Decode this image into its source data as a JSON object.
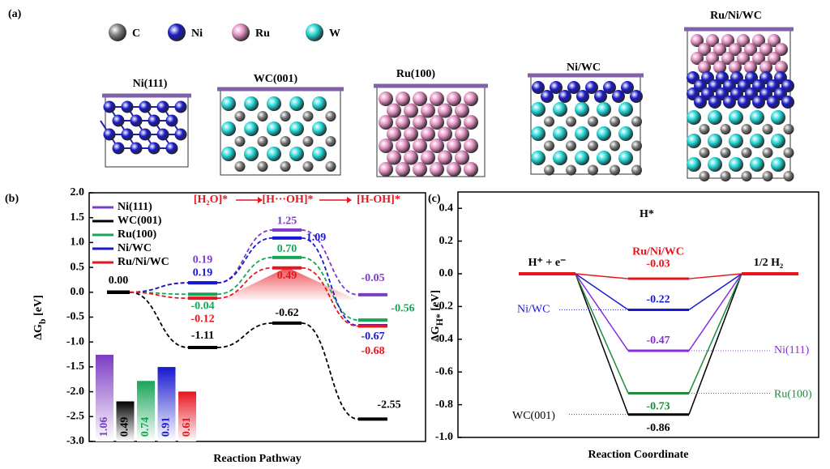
{
  "panel_labels": [
    "(a)",
    "(b)",
    "(c)"
  ],
  "structures": {
    "legend": [
      {
        "name": "C",
        "color": "#7f7f7f"
      },
      {
        "name": "Ni",
        "color": "#1c1cc8"
      },
      {
        "name": "Ru",
        "color": "#e28fc0"
      },
      {
        "name": "W",
        "color": "#22d4d4"
      }
    ],
    "labels": [
      "Ni(111)",
      "WC(001)",
      "Ru(100)",
      "Ni/WC",
      "Ru/Ni/WC"
    ]
  },
  "chart_data": [
    {
      "type": "line",
      "categories": [
        null,
        "[H₂O]*",
        "[H···OH]*",
        "[H-OH]*"
      ],
      "ylim": [
        -3,
        2
      ],
      "yticks": [
        {
          "value": 2,
          "label": "2.0"
        },
        {
          "value": 1.5,
          "label": "1.5"
        },
        {
          "value": 1,
          "label": "1.0"
        },
        {
          "value": 0.5,
          "label": "0.5"
        },
        {
          "value": 0,
          "label": "0.0"
        },
        {
          "value": -0.5,
          "label": "-0.5"
        },
        {
          "value": -1,
          "label": "-1.0"
        },
        {
          "value": -1.5,
          "label": "-1.5"
        },
        {
          "value": -2,
          "label": "-2.0"
        },
        {
          "value": -2.5,
          "label": "-2.5"
        },
        {
          "value": -3,
          "label": "-3.0"
        }
      ],
      "ylabel": [
        "ΔG",
        "b",
        " [eV]"
      ],
      "xlabel": "Reaction Pathway",
      "legend": "upper left",
      "series": [
        {
          "name": "Ni(111)",
          "color": "#7d3cc4",
          "values": [
            0,
            0.19,
            1.25,
            -0.05
          ],
          "value_labels": [
            null,
            "0.19",
            "1.25",
            "-0.05"
          ]
        },
        {
          "name": "WC(001)",
          "color": "#000000",
          "values": [
            0,
            -1.11,
            -0.62,
            -2.55
          ],
          "value_labels": [
            "0.00",
            "-1.11",
            "-0.62",
            "-2.55"
          ]
        },
        {
          "name": "Ru(100)",
          "color": "#18a558",
          "values": [
            0,
            -0.04,
            0.7,
            -0.56
          ],
          "value_labels": [
            null,
            "-0.04",
            "0.70",
            "-0.56"
          ]
        },
        {
          "name": "Ni/WC",
          "color": "#1818d0",
          "values": [
            0,
            0.19,
            1.09,
            -0.67
          ],
          "value_labels": [
            null,
            "0.19",
            "1.09",
            "-0.67"
          ]
        },
        {
          "name": "Ru/Ni/WC",
          "color": "#e8141e",
          "values": [
            0,
            -0.12,
            0.49,
            -0.68
          ],
          "value_labels": [
            null,
            "-0.12",
            "0.49",
            "-0.68"
          ]
        }
      ],
      "inset": {
        "type": "bar",
        "values": [
          1.06,
          0.49,
          0.74,
          0.91,
          0.61
        ]
      }
    },
    {
      "type": "line",
      "title": "H*",
      "categories": [
        "H⁺ + e⁻",
        "H*",
        "1/2 H₂"
      ],
      "ylim": [
        -1,
        0.5
      ],
      "yticks": [
        {
          "value": 0.4,
          "label": "0.4"
        },
        {
          "value": 0.2,
          "label": "0.2"
        },
        {
          "value": 0,
          "label": "0.0"
        },
        {
          "value": -0.2,
          "label": "-0.2"
        },
        {
          "value": -0.4,
          "label": "-0.4"
        },
        {
          "value": -0.6,
          "label": "-0.6"
        },
        {
          "value": -0.8,
          "label": "-0.8"
        },
        {
          "value": -1,
          "label": "-1.0"
        }
      ],
      "ylabel": [
        "ΔG",
        "H*",
        " [eV]"
      ],
      "xlabel": "Reaction Coordinate",
      "series": [
        {
          "name": "Ru/Ni/WC",
          "color": "#e8141e",
          "values": [
            0,
            -0.03,
            0
          ],
          "value_labels": [
            null,
            "-0.03",
            null
          ]
        },
        {
          "name": "Ni/WC",
          "color": "#1818d0",
          "values": [
            0,
            -0.22,
            0
          ],
          "value_labels": [
            null,
            "-0.22",
            null
          ]
        },
        {
          "name": "Ni(111)",
          "color": "#8a2be2",
          "values": [
            0,
            -0.47,
            0
          ],
          "value_labels": [
            null,
            "-0.47",
            null
          ]
        },
        {
          "name": "Ru(100)",
          "color": "#1e8c3a",
          "values": [
            0,
            -0.73,
            0
          ],
          "value_labels": [
            null,
            "-0.73",
            null
          ]
        },
        {
          "name": "WC(001)",
          "color": "#000000",
          "values": [
            0,
            -0.86,
            0
          ],
          "value_labels": [
            null,
            "-0.86",
            null
          ]
        }
      ]
    }
  ]
}
